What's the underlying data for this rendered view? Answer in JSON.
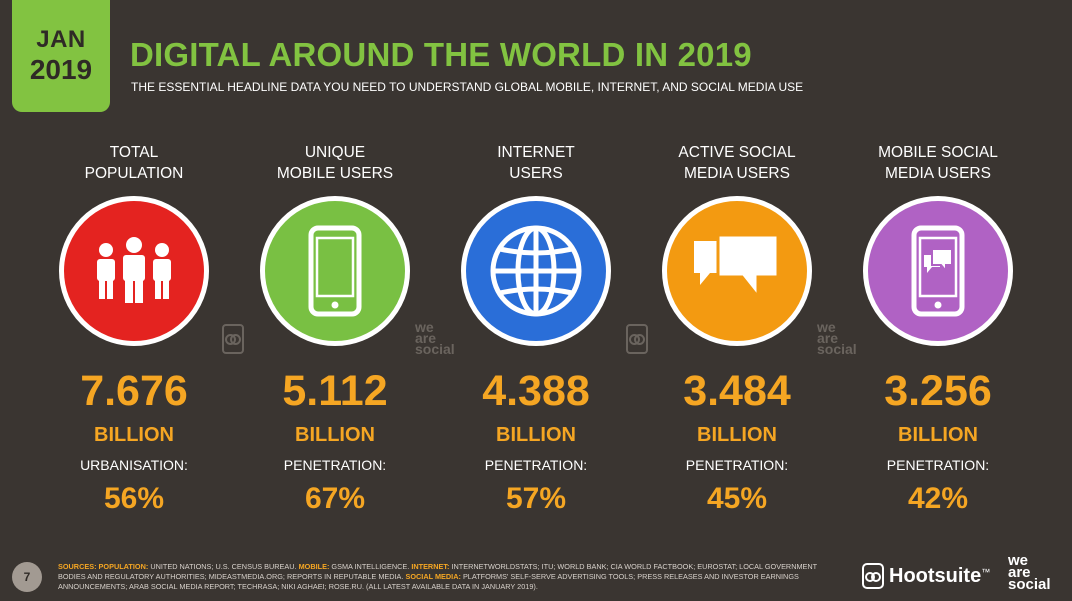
{
  "badge": {
    "month": "JAN",
    "year": "2019"
  },
  "header": {
    "title": "DIGITAL AROUND THE WORLD IN 2019",
    "subtitle": "THE ESSENTIAL HEADLINE DATA YOU NEED TO UNDERSTAND GLOBAL MOBILE, INTERNET, AND SOCIAL MEDIA USE"
  },
  "stats": [
    {
      "label_line1": "TOTAL",
      "label_line2": "POPULATION",
      "value": "7.676",
      "unit": "BILLION",
      "sublabel": "URBANISATION:",
      "pct": "56%",
      "color": "#e42320",
      "icon": "people-icon"
    },
    {
      "label_line1": "UNIQUE",
      "label_line2": "MOBILE USERS",
      "value": "5.112",
      "unit": "BILLION",
      "sublabel": "PENETRATION:",
      "pct": "67%",
      "color": "#79c043",
      "icon": "mobile-phone-icon"
    },
    {
      "label_line1": "INTERNET",
      "label_line2": "USERS",
      "value": "4.388",
      "unit": "BILLION",
      "sublabel": "PENETRATION:",
      "pct": "57%",
      "color": "#2a6ed8",
      "icon": "globe-icon"
    },
    {
      "label_line1": "ACTIVE SOCIAL",
      "label_line2": "MEDIA USERS",
      "value": "3.484",
      "unit": "BILLION",
      "sublabel": "PENETRATION:",
      "pct": "45%",
      "color": "#f39a11",
      "icon": "chat-bubbles-icon"
    },
    {
      "label_line1": "MOBILE SOCIAL",
      "label_line2": "MEDIA USERS",
      "value": "3.256",
      "unit": "BILLION",
      "sublabel": "PENETRATION:",
      "pct": "42%",
      "color": "#b062c4",
      "icon": "phone-chat-icon"
    }
  ],
  "watermarks": {
    "line1": "we",
    "line2": "are",
    "line3": "social"
  },
  "footer": {
    "page_number": "7",
    "sources_label": "SOURCES:",
    "population_label": "POPULATION:",
    "population_text": "UNITED NATIONS; U.S. CENSUS BUREAU.",
    "mobile_label": "MOBILE:",
    "mobile_text": "GSMA INTELLIGENCE.",
    "internet_label": "INTERNET:",
    "internet_text": "INTERNETWORLDSTATS; ITU; WORLD BANK; CIA WORLD FACTBOOK; EUROSTAT; LOCAL GOVERNMENT BODIES AND REGULATORY AUTHORITIES; MIDEASTMEDIA.ORG; REPORTS IN REPUTABLE MEDIA.",
    "social_label": "SOCIAL MEDIA:",
    "social_text": "PLATFORMS' SELF-SERVE ADVERTISING TOOLS; PRESS RELEASES AND INVESTOR EARNINGS ANNOUNCEMENTS; ARAB SOCIAL MEDIA REPORT; TECHRASA; NIKI AGHAEI; ROSE.RU. (ALL LATEST AVAILABLE DATA IN JANUARY 2019).",
    "brand": "Hootsuite",
    "brand_tm": "™",
    "was_line1": "we",
    "was_line2": "are",
    "was_line3": "social"
  }
}
